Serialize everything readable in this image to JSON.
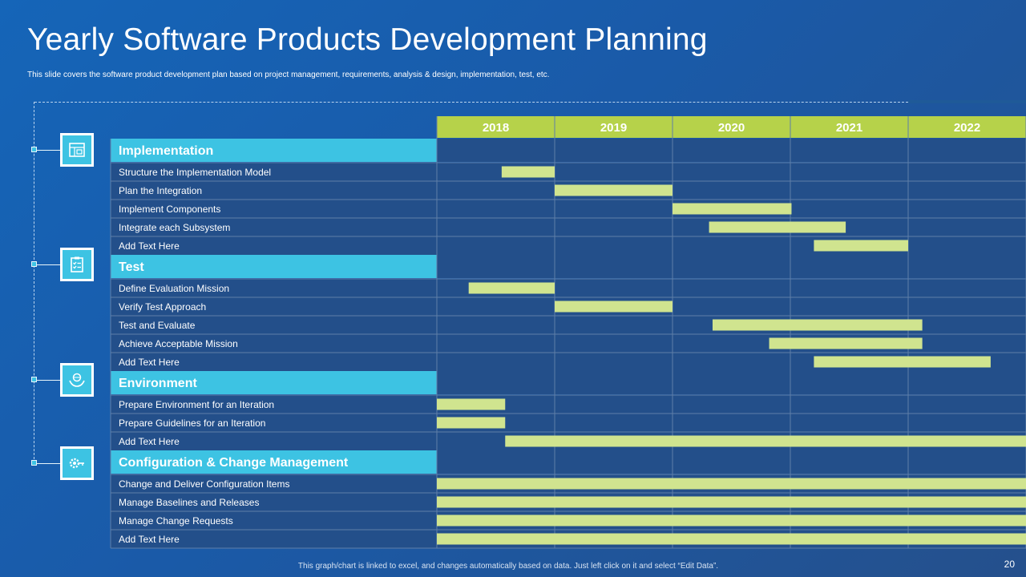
{
  "header": {
    "title": "Yearly Software Products Development Planning",
    "subtitle": "This slide covers the software product development plan based on project management,  requirements, analysis & design, implementation,  test, etc."
  },
  "footer": {
    "note": "This graph/chart is linked to excel, and changes automatically based on data. Just left click on it and select “Edit Data”.",
    "page_number": "20"
  },
  "colors": {
    "section_fill": "#3dc3e3",
    "year_header_fill": "#b6d24a",
    "bar_fill": "#d0e48f",
    "row_fill": "#234f8a",
    "grid_line": "#5f7fa8"
  },
  "icons": [
    "blueprint-icon",
    "clipboard-checklist-icon",
    "hands-globe-icon",
    "gear-key-icon"
  ],
  "chart_data": {
    "type": "gantt",
    "years": [
      "2018",
      "2019",
      "2020",
      "2021",
      "2022"
    ],
    "x_range": [
      2018.0,
      2023.0
    ],
    "sections": [
      {
        "name": "Implementation",
        "icon": "blueprint-icon",
        "tasks": [
          {
            "label": "Structure the Implementation Model",
            "start": 2018.55,
            "end": 2019.0
          },
          {
            "label": "Plan the Integration",
            "start": 2019.0,
            "end": 2020.0
          },
          {
            "label": "Implement Components",
            "start": 2020.0,
            "end": 2021.01
          },
          {
            "label": "Integrate each Subsystem",
            "start": 2020.31,
            "end": 2021.47
          },
          {
            "label": "Add Text Here",
            "start": 2021.2,
            "end": 2022.0
          }
        ]
      },
      {
        "name": "Test",
        "icon": "clipboard-checklist-icon",
        "tasks": [
          {
            "label": "Define Evaluation Mission",
            "start": 2018.27,
            "end": 2019.0
          },
          {
            "label": "Verify Test Approach",
            "start": 2019.0,
            "end": 2020.0
          },
          {
            "label": "Test and Evaluate",
            "start": 2020.34,
            "end": 2022.12
          },
          {
            "label": "Achieve Acceptable Mission",
            "start": 2020.82,
            "end": 2022.12
          },
          {
            "label": "Add Text Here",
            "start": 2021.2,
            "end": 2022.7
          }
        ]
      },
      {
        "name": "Environment",
        "icon": "hands-globe-icon",
        "tasks": [
          {
            "label": "Prepare Environment for an Iteration",
            "start": 2018.0,
            "end": 2018.58
          },
          {
            "label": "Prepare Guidelines for an Iteration",
            "start": 2018.0,
            "end": 2018.58
          },
          {
            "label": "Add Text Here",
            "start": 2018.58,
            "end": 2023.0
          }
        ]
      },
      {
        "name": "Configuration & Change Management",
        "icon": "gear-key-icon",
        "tasks": [
          {
            "label": "Change and Deliver Configuration Items",
            "start": 2018.0,
            "end": 2023.0
          },
          {
            "label": "Manage Baselines and Releases",
            "start": 2018.0,
            "end": 2023.0
          },
          {
            "label": "Manage Change Requests",
            "start": 2018.0,
            "end": 2023.0
          },
          {
            "label": "Add Text Here",
            "start": 2018.0,
            "end": 2023.0
          }
        ]
      }
    ]
  }
}
